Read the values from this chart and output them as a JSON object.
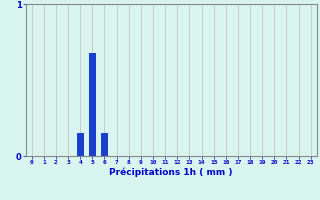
{
  "values": [
    0,
    0,
    0,
    0,
    0.15,
    0.68,
    0.15,
    0,
    0,
    0,
    0,
    0,
    0,
    0,
    0,
    0,
    0,
    0,
    0,
    0,
    0,
    0,
    0,
    0
  ],
  "bar_color": "#1a3fcc",
  "bg_color": "#d8f5f0",
  "grid_color": "#c8b8b8",
  "axis_color": "#888888",
  "xlabel": "Précipitations 1h ( mm )",
  "xlabel_color": "#0000cc",
  "tick_color": "#0000cc",
  "ylim": [
    0,
    1
  ],
  "xlim": [
    -0.5,
    23.5
  ],
  "yticks": [
    0,
    1
  ],
  "xticks": [
    0,
    1,
    2,
    3,
    4,
    5,
    6,
    7,
    8,
    9,
    10,
    11,
    12,
    13,
    14,
    15,
    16,
    17,
    18,
    19,
    20,
    21,
    22,
    23
  ],
  "bar_width": 0.6,
  "fig_width": 3.2,
  "fig_height": 2.0,
  "dpi": 100
}
